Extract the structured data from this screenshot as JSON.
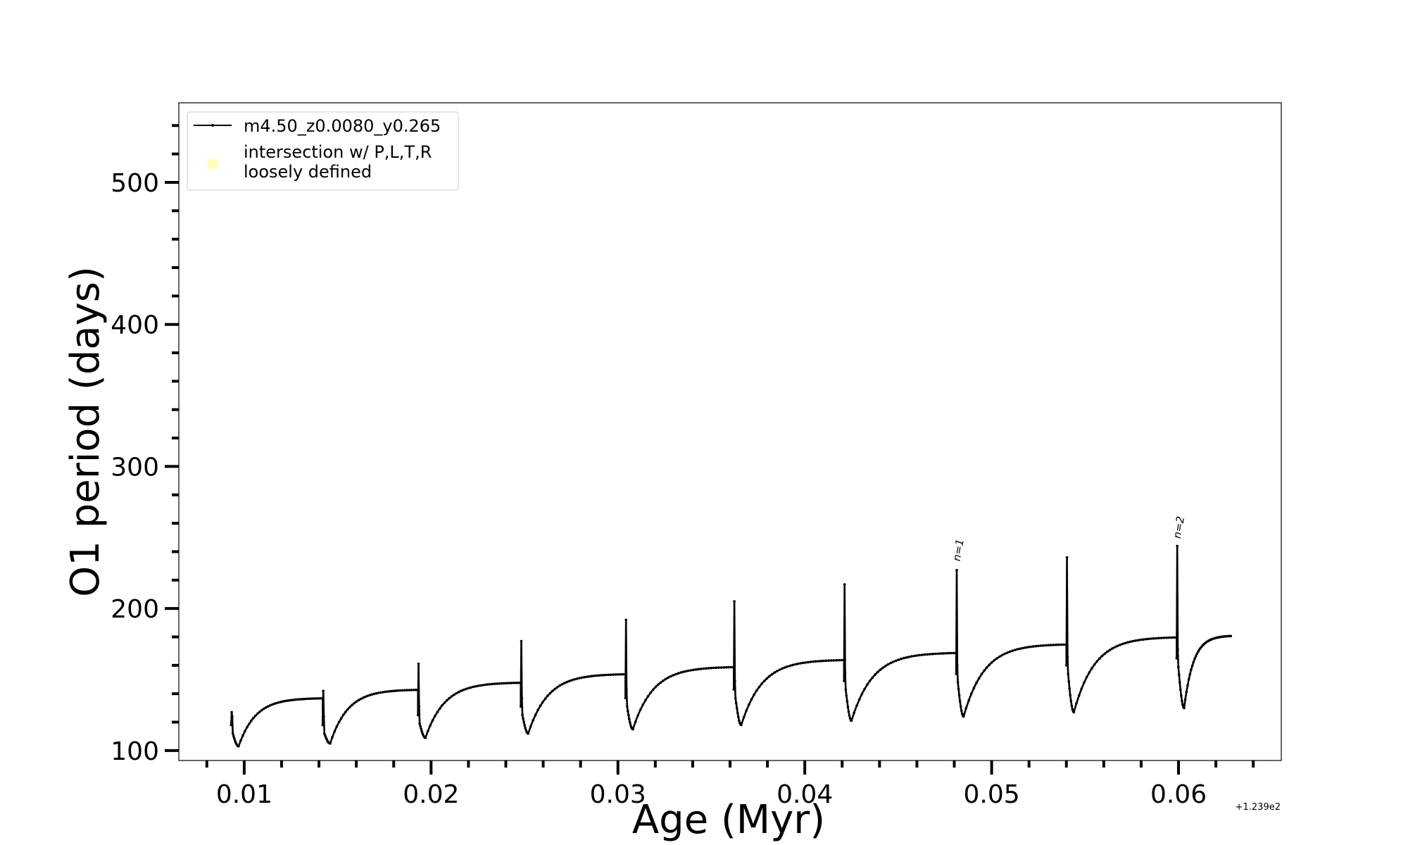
{
  "chart_data": {
    "type": "line",
    "xlabel": "Age (Myr)",
    "ylabel": "O1 period (days)",
    "x_offset_label": "+1.239e2",
    "xlim": [
      0.0065,
      0.0655
    ],
    "ylim": [
      93,
      556
    ],
    "x_ticks": [
      0.01,
      0.02,
      0.03,
      0.04,
      0.05,
      0.06
    ],
    "x_tick_labels": [
      "0.01",
      "0.02",
      "0.03",
      "0.04",
      "0.05",
      "0.06"
    ],
    "y_ticks": [
      100,
      200,
      300,
      400,
      500
    ],
    "y_tick_labels": [
      "100",
      "200",
      "300",
      "400",
      "500"
    ],
    "x_minor_step": 0.002,
    "y_minor_step": 20,
    "grid": false,
    "legend_position": "top-left",
    "legend": [
      {
        "label": "m4.50_z0.0080_y0.265",
        "kind": "line-marker",
        "color": "#000000"
      },
      {
        "label": "intersection w/ P,L,T,R\nloosely defined",
        "kind": "dot",
        "color": "#ffff99"
      }
    ],
    "series": [
      {
        "name": "m4.50_z0.0080_y0.265",
        "color": "#000000",
        "cycles": [
          {
            "x_start": 0.0093,
            "peak_y": 127,
            "pre_y": 112,
            "min_x": 0.0097,
            "min_y": 103,
            "x_end": 0.0142,
            "plateau_y": 137
          },
          {
            "x_start": 0.0142,
            "peak_y": 142,
            "pre_y": 112,
            "min_x": 0.0146,
            "min_y": 105,
            "x_end": 0.0193,
            "plateau_y": 143
          },
          {
            "x_start": 0.0193,
            "peak_y": 161,
            "pre_y": 119,
            "min_x": 0.0197,
            "min_y": 109,
            "x_end": 0.0248,
            "plateau_y": 148
          },
          {
            "x_start": 0.0248,
            "peak_y": 177,
            "pre_y": 125,
            "min_x": 0.0252,
            "min_y": 112,
            "x_end": 0.0304,
            "plateau_y": 154
          },
          {
            "x_start": 0.0304,
            "peak_y": 192,
            "pre_y": 131,
            "min_x": 0.0308,
            "min_y": 115,
            "x_end": 0.0362,
            "plateau_y": 159
          },
          {
            "x_start": 0.0362,
            "peak_y": 205,
            "pre_y": 137,
            "min_x": 0.0366,
            "min_y": 118,
            "x_end": 0.0421,
            "plateau_y": 164
          },
          {
            "x_start": 0.0421,
            "peak_y": 217,
            "pre_y": 143,
            "min_x": 0.0425,
            "min_y": 121,
            "x_end": 0.0481,
            "plateau_y": 169
          },
          {
            "x_start": 0.0481,
            "peak_y": 227,
            "pre_y": 148,
            "min_x": 0.0485,
            "min_y": 124,
            "x_end": 0.054,
            "plateau_y": 175
          },
          {
            "x_start": 0.054,
            "peak_y": 236,
            "pre_y": 154,
            "min_x": 0.0544,
            "min_y": 127,
            "x_end": 0.0599,
            "plateau_y": 180
          },
          {
            "x_start": 0.0599,
            "peak_y": 244,
            "pre_y": 159,
            "min_x": 0.0603,
            "min_y": 130,
            "x_end": 0.0628,
            "plateau_y": 181
          }
        ]
      }
    ],
    "annotations": [
      {
        "text": "n=1",
        "x": 0.0483,
        "y": 233
      },
      {
        "text": "n=2",
        "x": 0.0601,
        "y": 249
      }
    ]
  }
}
